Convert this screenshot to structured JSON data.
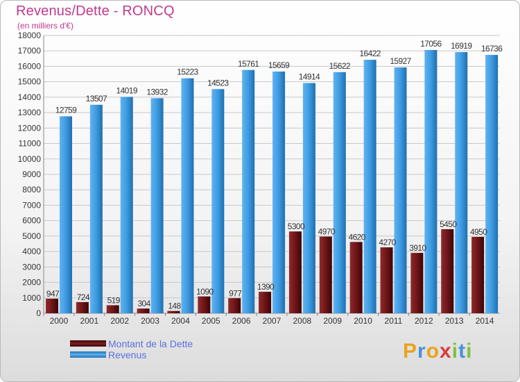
{
  "chart_data": {
    "type": "bar",
    "title": "Revenus/Dette - RONCQ",
    "subtitle": "(en milliers d'€)",
    "categories": [
      "2000",
      "2001",
      "2002",
      "2003",
      "2004",
      "2005",
      "2006",
      "2007",
      "2008",
      "2009",
      "2010",
      "2011",
      "2012",
      "2013",
      "2014"
    ],
    "series": [
      {
        "name": "Montant de la Dette",
        "color": "#7a1f22",
        "values": [
          947,
          724,
          519,
          304,
          148,
          1090,
          977,
          1390,
          5300,
          4970,
          4620,
          4270,
          3910,
          5450,
          4950
        ],
        "labels": [
          "947",
          "724",
          "519",
          "304",
          "148",
          "1090",
          "977",
          "1390",
          "5300",
          "4970",
          "4620",
          "4270",
          "3910",
          "5450",
          "4950"
        ]
      },
      {
        "name": "Revenus",
        "color": "#3d9be0",
        "values": [
          12759,
          13507,
          14019,
          13932,
          15223,
          14523,
          15761,
          15659,
          14914,
          15622,
          16422,
          15927,
          17056,
          16919,
          16736
        ],
        "labels": [
          "12759",
          "13507",
          "14019",
          "13932",
          "15223",
          "14523",
          "15761",
          "15659",
          "14914",
          "15622",
          "16422",
          "15927",
          "17056",
          "16919",
          "16736"
        ]
      }
    ],
    "ylim": [
      0,
      18000
    ],
    "yticks": [
      "0",
      "1000",
      "2000",
      "3000",
      "4000",
      "5000",
      "6000",
      "7000",
      "8000",
      "9000",
      "10000",
      "11000",
      "12000",
      "13000",
      "14000",
      "15000",
      "16000",
      "17000",
      "18000"
    ],
    "grid": true,
    "legend_position": "bottom-left"
  },
  "legend": {
    "debt_label": "Montant de la Dette",
    "revenue_label": "Revenus"
  },
  "logo": {
    "letters": [
      "P",
      "r",
      "o",
      "x",
      "i",
      "t",
      "i"
    ],
    "colors": [
      "#e8a41c",
      "#4a90d9",
      "#e8a41c",
      "#d93b3b",
      "#7cc242",
      "#4a90d9",
      "#7cc242"
    ]
  }
}
